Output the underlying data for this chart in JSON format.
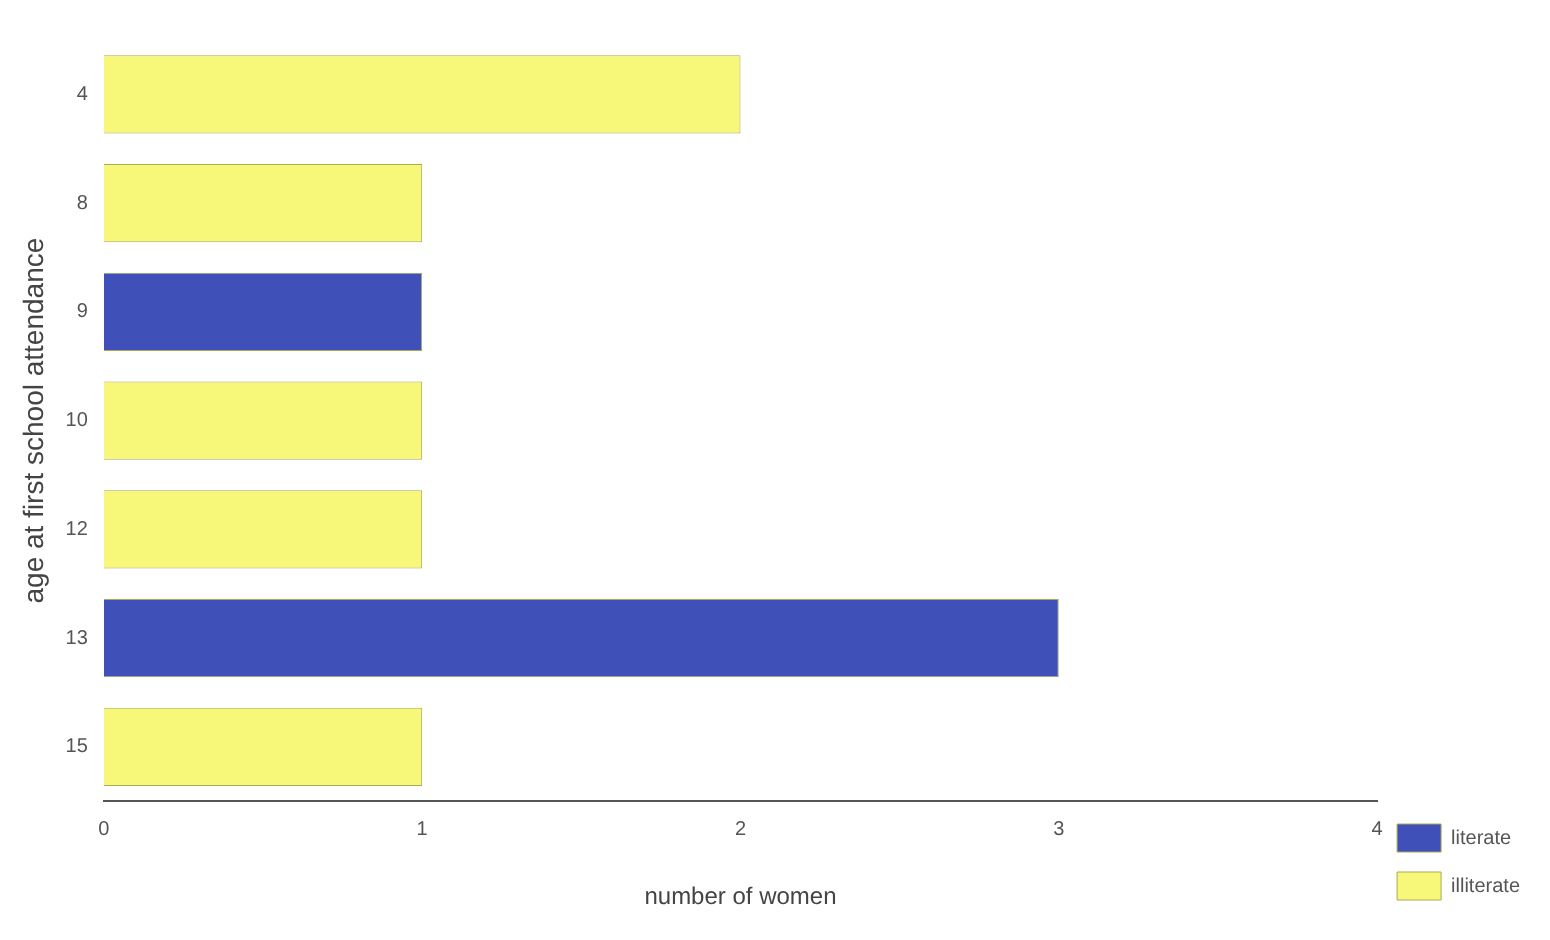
{
  "chart_data": {
    "type": "bar",
    "orientation": "horizontal",
    "xlabel": "number of women",
    "ylabel": "age at first school attendance",
    "categories": [
      "4",
      "8",
      "9",
      "10",
      "12",
      "13",
      "15"
    ],
    "series": [
      {
        "name": "literate",
        "color": "#3f51b8",
        "values": [
          null,
          null,
          1,
          null,
          null,
          3,
          null
        ]
      },
      {
        "name": "illiterate",
        "color": "#f7f77a",
        "values": [
          2,
          1,
          null,
          1,
          1,
          null,
          1
        ]
      }
    ],
    "xlim": [
      0,
      4
    ],
    "xticks": [
      0,
      1,
      2,
      3,
      4
    ],
    "grid": false,
    "legend": "bottom right"
  }
}
